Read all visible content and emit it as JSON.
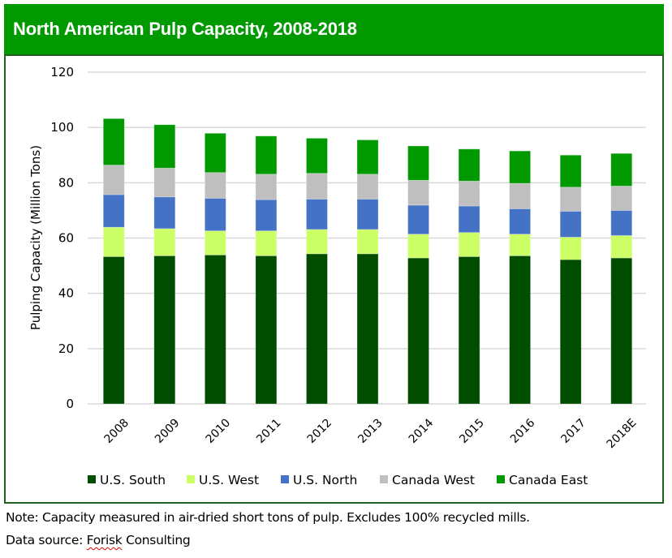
{
  "header": {
    "title": "North American Pulp Capacity, 2008-2018"
  },
  "notes": {
    "note_line": "Note: Capacity measured in air-dried short tons of pulp. Excludes 100% recycled mills.",
    "source_prefix": "Data source: ",
    "source_name": "Forisk",
    "source_suffix": " Consulting"
  },
  "chart_data": {
    "type": "bar",
    "stacked": true,
    "title": "North American Pulp Capacity, 2008-2018",
    "xlabel": "",
    "ylabel": "Pulping Capacity (Million Tons)",
    "ylim": [
      0,
      120
    ],
    "yticks": [
      0,
      20,
      40,
      60,
      80,
      100,
      120
    ],
    "grid": true,
    "legend_position": "bottom",
    "categories": [
      "2008",
      "2009",
      "2010",
      "2011",
      "2012",
      "2013",
      "2014",
      "2015",
      "2016",
      "2017",
      "2018E"
    ],
    "series": [
      {
        "name": "U.S. South",
        "color": "#004d00",
        "values": [
          53.3,
          53.6,
          53.9,
          53.6,
          54.3,
          54.3,
          52.8,
          53.3,
          53.6,
          52.2,
          52.8
        ]
      },
      {
        "name": "U.S. West",
        "color": "#ccff66",
        "values": [
          10.6,
          9.8,
          8.7,
          9.0,
          8.8,
          8.8,
          8.6,
          8.7,
          7.8,
          8.1,
          8.1
        ]
      },
      {
        "name": "U.S. North",
        "color": "#4472c4",
        "values": [
          11.8,
          11.5,
          11.8,
          11.3,
          11.0,
          11.0,
          10.5,
          9.6,
          9.2,
          9.4,
          9.1
        ]
      },
      {
        "name": "Canada West",
        "color": "#bfbfbf",
        "values": [
          10.7,
          10.4,
          9.3,
          9.2,
          9.3,
          9.0,
          9.0,
          9.0,
          9.2,
          8.7,
          8.8
        ]
      },
      {
        "name": "Canada East",
        "color": "#009900",
        "values": [
          16.8,
          15.7,
          14.2,
          13.8,
          12.7,
          12.4,
          12.4,
          11.6,
          11.7,
          11.6,
          11.8
        ]
      }
    ]
  }
}
